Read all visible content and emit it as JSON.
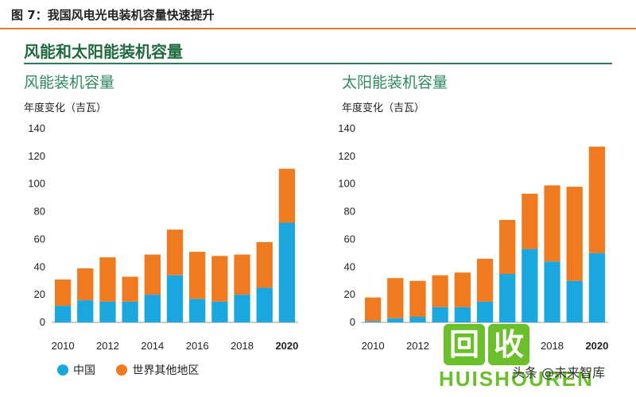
{
  "header": {
    "figure_caption": "图 7：我国风电光电装机容量快速提升",
    "section_title": "风能和太阳能装机容量"
  },
  "legend": {
    "items": [
      {
        "label": "中国",
        "color": "#1aa7e0"
      },
      {
        "label": "世界其他地区",
        "color": "#f07a1f"
      }
    ]
  },
  "watermark": {
    "logo_chars": [
      "回",
      "收"
    ],
    "brand_text": "HUISHOUREN",
    "credit": "头条 @未来智库"
  },
  "chart_data": [
    {
      "type": "bar",
      "stacked": true,
      "title": "风能装机容量",
      "ylabel": "年度变化（吉瓦）",
      "xlabel": "",
      "categories": [
        "2010",
        "2011",
        "2012",
        "2013",
        "2014",
        "2015",
        "2016",
        "2017",
        "2018",
        "2019",
        "2020"
      ],
      "x_tick_labels": [
        "2010",
        "",
        "2012",
        "",
        "2014",
        "",
        "2016",
        "",
        "2018",
        "",
        "2020"
      ],
      "highlight_category": "2020",
      "ylim": [
        0,
        140
      ],
      "yticks": [
        0,
        20,
        40,
        60,
        80,
        100,
        120,
        140
      ],
      "grid": false,
      "legend_position": "bottom",
      "series": [
        {
          "name": "中国",
          "color": "#1aa7e0",
          "values": [
            12,
            16,
            15,
            15,
            20,
            34,
            17,
            15,
            20,
            25,
            72
          ]
        },
        {
          "name": "世界其他地区",
          "color": "#f07a1f",
          "values": [
            19,
            23,
            32,
            18,
            29,
            33,
            34,
            33,
            29,
            33,
            39
          ]
        }
      ]
    },
    {
      "type": "bar",
      "stacked": true,
      "title": "太阳能装机容量",
      "ylabel": "年度变化（吉瓦）",
      "xlabel": "",
      "categories": [
        "2010",
        "2011",
        "2012",
        "2013",
        "2014",
        "2015",
        "2016",
        "2017",
        "2018",
        "2019",
        "2020"
      ],
      "x_tick_labels": [
        "2010",
        "",
        "2012",
        "",
        "2014",
        "",
        "2016",
        "",
        "2018",
        "",
        "2020"
      ],
      "highlight_category": "2020",
      "ylim": [
        0,
        140
      ],
      "yticks": [
        0,
        20,
        40,
        60,
        80,
        100,
        120,
        140
      ],
      "grid": false,
      "legend_position": "bottom",
      "series": [
        {
          "name": "中国",
          "color": "#1aa7e0",
          "values": [
            1,
            3,
            4,
            11,
            11,
            15,
            35,
            53,
            44,
            30,
            50
          ]
        },
        {
          "name": "世界其他地区",
          "color": "#f07a1f",
          "values": [
            17,
            29,
            26,
            23,
            25,
            31,
            39,
            40,
            55,
            68,
            77
          ]
        }
      ]
    }
  ]
}
